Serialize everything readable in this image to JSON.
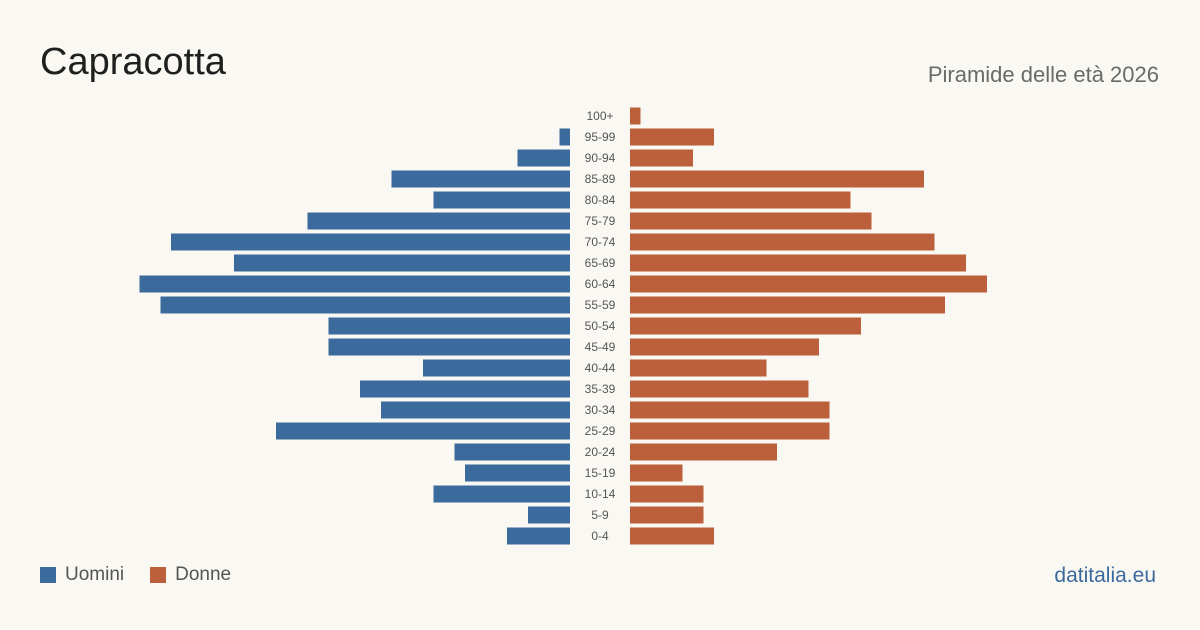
{
  "header": {
    "title": "Capracotta",
    "subtitle": "Piramide delle età 2026"
  },
  "legend": {
    "men_label": "Uomini",
    "women_label": "Donne"
  },
  "footer": {
    "brand": "datitalia.eu"
  },
  "colors": {
    "men": "#3b6a9c",
    "women": "#bb5f3c",
    "label": "#555555"
  },
  "chart_data": {
    "type": "bar",
    "orientation": "horizontal",
    "categories": [
      "100+",
      "95-99",
      "90-94",
      "85-89",
      "80-84",
      "75-79",
      "70-74",
      "65-69",
      "60-64",
      "55-59",
      "50-54",
      "45-49",
      "40-44",
      "35-39",
      "30-34",
      "25-29",
      "20-24",
      "15-19",
      "10-14",
      "5-9",
      "0-4"
    ],
    "series": [
      {
        "name": "Uomini",
        "values": [
          0,
          1,
          5,
          17,
          13,
          25,
          38,
          32,
          41,
          39,
          23,
          23,
          14,
          20,
          18,
          28,
          11,
          10,
          13,
          4,
          6
        ]
      },
      {
        "name": "Donne",
        "values": [
          1,
          8,
          6,
          28,
          21,
          23,
          29,
          32,
          34,
          30,
          22,
          18,
          13,
          17,
          19,
          19,
          14,
          5,
          7,
          7,
          8
        ]
      }
    ],
    "legend_position": "bottom-left",
    "grid": false
  }
}
